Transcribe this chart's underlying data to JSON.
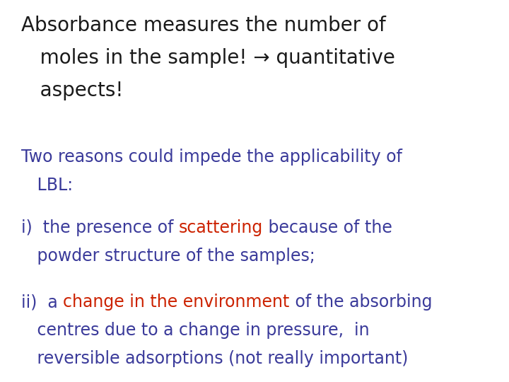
{
  "background_color": "#ffffff",
  "title_line1": "Absorbance measures the number of",
  "title_line2": "   moles in the sample! → quantitative",
  "title_line3": "   aspects!",
  "title_color": "#1a1a1a",
  "title_fontsize": 20,
  "subtitle_line1": "Two reasons could impede the applicability of",
  "subtitle_line2": "   LBL:",
  "subtitle_color": "#3a3a9a",
  "subtitle_fontsize": 17,
  "item_i_pre": "i)  the presence of ",
  "item_i_red": "scattering",
  "item_i_post": " because of the",
  "item_i_line2": "   powder structure of the samples;",
  "item_i_color": "#3a3a9a",
  "item_red_color": "#cc2200",
  "item_fontsize": 17,
  "item_ii_pre": "ii)  a ",
  "item_ii_red": "change in the environment",
  "item_ii_post": " of the absorbing",
  "item_ii_color": "#3a3a9a",
  "item_ii_line2": "   centres due to a change in pressure,  in",
  "item_ii_line3": "   reversible adsorptions (not really important)"
}
